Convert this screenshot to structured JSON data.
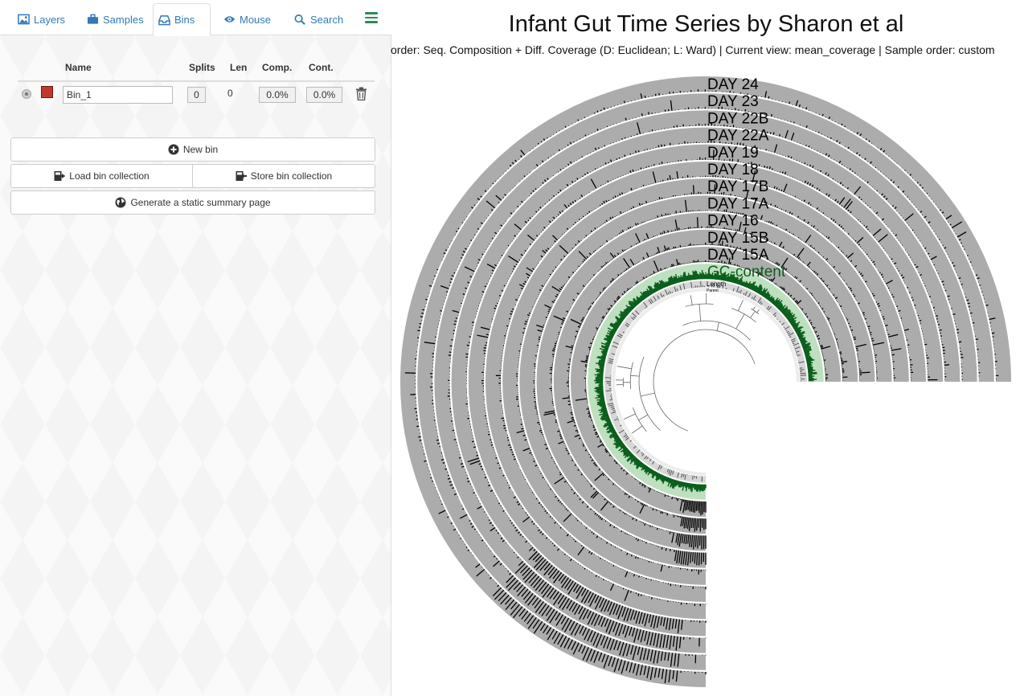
{
  "tabs": [
    {
      "label": "Layers",
      "icon": "image-icon"
    },
    {
      "label": "Samples",
      "icon": "briefcase-icon"
    },
    {
      "label": "Bins",
      "icon": "inbox-icon",
      "active": true
    },
    {
      "label": "Mouse",
      "icon": "eye-icon"
    },
    {
      "label": "Search",
      "icon": "search-icon"
    }
  ],
  "bins": {
    "columns": [
      "Name",
      "Splits",
      "Len",
      "Comp.",
      "Cont."
    ],
    "rows": [
      {
        "name": "Bin_1",
        "color": "#c0392b",
        "splits": "0",
        "len": "0",
        "comp": "0.0%",
        "cont": "0.0%"
      }
    ],
    "buttons": {
      "new_bin": "New bin",
      "load": "Load bin collection",
      "store": "Store bin collection",
      "summary": "Generate a static summary page"
    }
  },
  "display": {
    "title": "Infant Gut Time Series by Sharon et al",
    "subtitle": "order: Seq. Composition + Diff. Coverage (D: Euclidean; L: Ward) | Current view: mean_coverage | Sample order: custom",
    "layers": [
      "DAY 24",
      "DAY 23",
      "DAY 22B",
      "DAY 22A",
      "DAY 19",
      "DAY 18",
      "DAY 17B",
      "DAY 17A",
      "DAY 16",
      "DAY 15B",
      "DAY 15A"
    ],
    "gc_label": "GC-content",
    "small_labels": [
      "Length",
      "Parent"
    ],
    "colors": {
      "layer_gray": "#acacac",
      "bar_black": "#000000",
      "gc_green": "#0b5f1c",
      "gc_bg": "#bfe0bf"
    }
  }
}
